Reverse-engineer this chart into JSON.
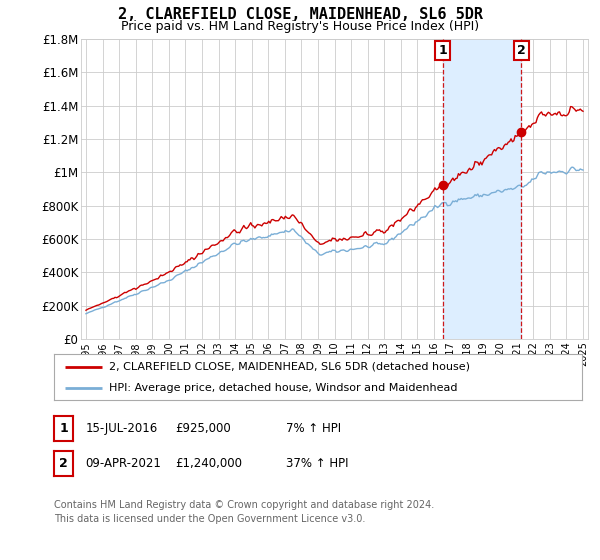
{
  "title": "2, CLAREFIELD CLOSE, MAIDENHEAD, SL6 5DR",
  "subtitle": "Price paid vs. HM Land Registry's House Price Index (HPI)",
  "ylim": [
    0,
    1800000
  ],
  "yticks": [
    0,
    200000,
    400000,
    600000,
    800000,
    1000000,
    1200000,
    1400000,
    1600000,
    1800000
  ],
  "ytick_labels": [
    "£0",
    "£200K",
    "£400K",
    "£600K",
    "£800K",
    "£1M",
    "£1.2M",
    "£1.4M",
    "£1.6M",
    "£1.8M"
  ],
  "sale1_date": 2016.54,
  "sale1_price": 925000,
  "sale1_label": "15-JUL-2016",
  "sale1_amount": "£925,000",
  "sale1_hpi": "7% ↑ HPI",
  "sale2_date": 2021.27,
  "sale2_price": 1240000,
  "sale2_label": "09-APR-2021",
  "sale2_amount": "£1,240,000",
  "sale2_hpi": "37% ↑ HPI",
  "property_color": "#cc0000",
  "hpi_color": "#7aaed6",
  "shade_color": "#ddeeff",
  "legend1": "2, CLAREFIELD CLOSE, MAIDENHEAD, SL6 5DR (detached house)",
  "legend2": "HPI: Average price, detached house, Windsor and Maidenhead",
  "footnote1": "Contains HM Land Registry data © Crown copyright and database right 2024.",
  "footnote2": "This data is licensed under the Open Government Licence v3.0.",
  "background_color": "#ffffff",
  "grid_color": "#cccccc"
}
